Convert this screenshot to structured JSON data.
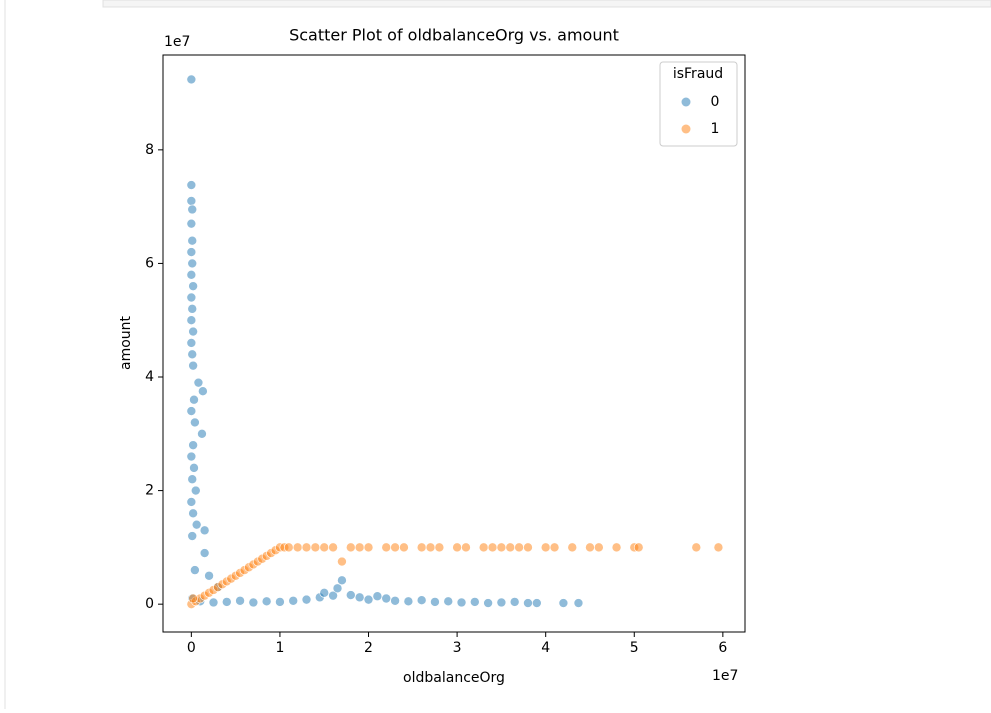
{
  "chart_data": {
    "type": "scatter",
    "title": "Scatter Plot of oldbalanceOrg vs. amount",
    "x_label": "oldbalanceOrg",
    "y_label": "amount",
    "x_offset_label": "1e7",
    "y_offset_label": "1e7",
    "legend_title": "isFraud",
    "legend": "upper right",
    "xlim": [
      -3200000,
      62500000
    ],
    "ylim": [
      -4900000,
      96700000
    ],
    "xticks": [
      0,
      {
        "value": 10000000,
        "label": "1"
      },
      {
        "value": 20000000,
        "label": "2"
      },
      {
        "value": 30000000,
        "label": "3"
      },
      {
        "value": 40000000,
        "label": "4"
      },
      {
        "value": 50000000,
        "label": "5"
      },
      {
        "value": 60000000,
        "label": "6"
      }
    ],
    "yticks": [
      0,
      {
        "value": 20000000,
        "label": "2"
      },
      {
        "value": 40000000,
        "label": "4"
      },
      {
        "value": 60000000,
        "label": "6"
      },
      {
        "value": 80000000,
        "label": "8"
      }
    ],
    "series": [
      {
        "name": "0",
        "color": "#1f77b4",
        "x": [
          0,
          0,
          0,
          100000.0,
          0,
          100000.0,
          0,
          100000.0,
          0,
          200000.0,
          0,
          100000.0,
          0,
          200000.0,
          0,
          100000.0,
          200000.0,
          800000.0,
          1300000.0,
          300000.0,
          0,
          400000.0,
          1200000.0,
          200000.0,
          0,
          300000.0,
          100000.0,
          500000.0,
          0,
          1500000.0,
          200000.0,
          600000.0,
          100000.0,
          1500000.0,
          2000000.0,
          3000000.0,
          400000.0,
          100000.0,
          1000000.0,
          2500000.0,
          4000000.0,
          5500000.0,
          7000000.0,
          8500000.0,
          10000000.0,
          11500000.0,
          13000000.0,
          14500000.0,
          15000000.0,
          16000000.0,
          16500000.0,
          17000000.0,
          18000000.0,
          19000000.0,
          20000000.0,
          21000000.0,
          22000000.0,
          23000000.0,
          24500000.0,
          26000000.0,
          27500000.0,
          29000000.0,
          30500000.0,
          32000000.0,
          33500000.0,
          35000000.0,
          36500000.0,
          38000000.0,
          39000000.0,
          42000000.0,
          43700000.0
        ],
        "values": [
          92400000.0,
          73800000.0,
          71000000.0,
          69500000.0,
          67000000.0,
          64000000.0,
          62000000.0,
          60000000.0,
          58000000.0,
          56000000.0,
          54000000.0,
          52000000.0,
          50000000.0,
          48000000.0,
          46000000.0,
          44000000.0,
          42000000.0,
          39000000.0,
          37500000.0,
          36000000.0,
          34000000.0,
          32000000.0,
          30000000.0,
          28000000.0,
          26000000.0,
          24000000.0,
          22000000.0,
          20000000.0,
          18000000.0,
          13000000.0,
          16000000.0,
          14000000.0,
          12000000.0,
          9000000.0,
          5000000.0,
          3000000.0,
          6000000.0,
          1000000.0,
          500000.0,
          300000.0,
          400000.0,
          600000.0,
          300000.0,
          500000.0,
          400000.0,
          600000.0,
          800000.0,
          1200000.0,
          2000000.0,
          1500000.0,
          2800000.0,
          4200000.0,
          1600000.0,
          1200000.0,
          800000.0,
          1400000.0,
          1000000.0,
          600000.0,
          500000.0,
          700000.0,
          400000.0,
          500000.0,
          300000.0,
          400000.0,
          200000.0,
          300000.0,
          400000.0,
          200000.0,
          200000.0,
          200000.0,
          200000.0
        ]
      },
      {
        "name": "1",
        "color": "#ff7f0e",
        "x": [
          0,
          500000.0,
          1000000.0,
          1500000.0,
          2000000.0,
          2500000.0,
          3000000.0,
          3500000.0,
          4000000.0,
          4500000.0,
          5000000.0,
          5500000.0,
          6000000.0,
          6500000.0,
          7000000.0,
          7500000.0,
          8000000.0,
          8500000.0,
          9000000.0,
          9500000.0,
          10000000.0,
          10500000.0,
          11000000.0,
          12000000.0,
          13000000.0,
          14000000.0,
          15000000.0,
          16000000.0,
          18000000.0,
          19000000.0,
          20000000.0,
          22000000.0,
          23000000.0,
          24000000.0,
          26000000.0,
          27000000.0,
          28000000.0,
          30000000.0,
          31000000.0,
          33000000.0,
          34000000.0,
          35000000.0,
          36000000.0,
          37000000.0,
          38000000.0,
          40000000.0,
          41000000.0,
          43000000.0,
          45000000.0,
          46000000.0,
          48000000.0,
          50000000.0,
          50500000.0,
          57000000.0,
          59500000.0,
          17000000.0,
          200000.0
        ],
        "values": [
          0,
          500000.0,
          1000000.0,
          1500000.0,
          2000000.0,
          2500000.0,
          3000000.0,
          3500000.0,
          4000000.0,
          4500000.0,
          5000000.0,
          5500000.0,
          6000000.0,
          6500000.0,
          7000000.0,
          7500000.0,
          8000000.0,
          8500000.0,
          9000000.0,
          9500000.0,
          10000000.0,
          10000000.0,
          10000000.0,
          10000000.0,
          10000000.0,
          10000000.0,
          10000000.0,
          10000000.0,
          10000000.0,
          10000000.0,
          10000000.0,
          10000000.0,
          10000000.0,
          10000000.0,
          10000000.0,
          10000000.0,
          10000000.0,
          10000000.0,
          10000000.0,
          10000000.0,
          10000000.0,
          10000000.0,
          10000000.0,
          10000000.0,
          10000000.0,
          10000000.0,
          10000000.0,
          10000000.0,
          10000000.0,
          10000000.0,
          10000000.0,
          10000000.0,
          10000000.0,
          10000000.0,
          10000000.0,
          7500000.0,
          1000000.0
        ]
      }
    ]
  }
}
